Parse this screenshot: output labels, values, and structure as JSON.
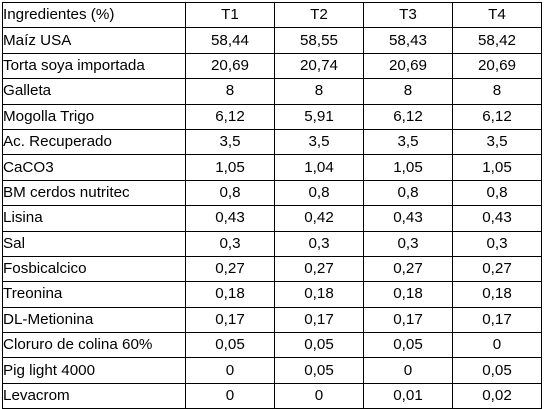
{
  "table": {
    "headers": [
      "Ingredientes (%)",
      "T1",
      "T2",
      "T3",
      "T4"
    ],
    "rows": [
      [
        "Maíz USA",
        "58,44",
        "58,55",
        "58,43",
        "58,42"
      ],
      [
        "Torta soya importada",
        "20,69",
        "20,74",
        "20,69",
        "20,69"
      ],
      [
        "Galleta",
        "8",
        "8",
        "8",
        "8"
      ],
      [
        "Mogolla Trigo",
        "6,12",
        "5,91",
        "6,12",
        "6,12"
      ],
      [
        "Ac. Recuperado",
        "3,5",
        "3,5",
        "3,5",
        "3,5"
      ],
      [
        "CaCO3",
        "1,05",
        "1,04",
        "1,05",
        "1,05"
      ],
      [
        "BM cerdos nutritec",
        "0,8",
        "0,8",
        "0,8",
        "0,8"
      ],
      [
        "Lisina",
        "0,43",
        "0,42",
        "0,43",
        "0,43"
      ],
      [
        "Sal",
        "0,3",
        "0,3",
        "0,3",
        "0,3"
      ],
      [
        "Fosbicalcico",
        "0,27",
        "0,27",
        "0,27",
        "0,27"
      ],
      [
        "Treonina",
        "0,18",
        "0,18",
        "0,18",
        "0,18"
      ],
      [
        "DL-Metionina",
        "0,17",
        "0,17",
        "0,17",
        "0,17"
      ],
      [
        "Cloruro de colina 60%",
        "0,05",
        "0,05",
        "0,05",
        "0"
      ],
      [
        "Pig light 4000",
        "0",
        "0,05",
        "0",
        "0,05"
      ],
      [
        "Levacrom",
        "0",
        "0",
        "0,01",
        "0,02"
      ]
    ]
  }
}
